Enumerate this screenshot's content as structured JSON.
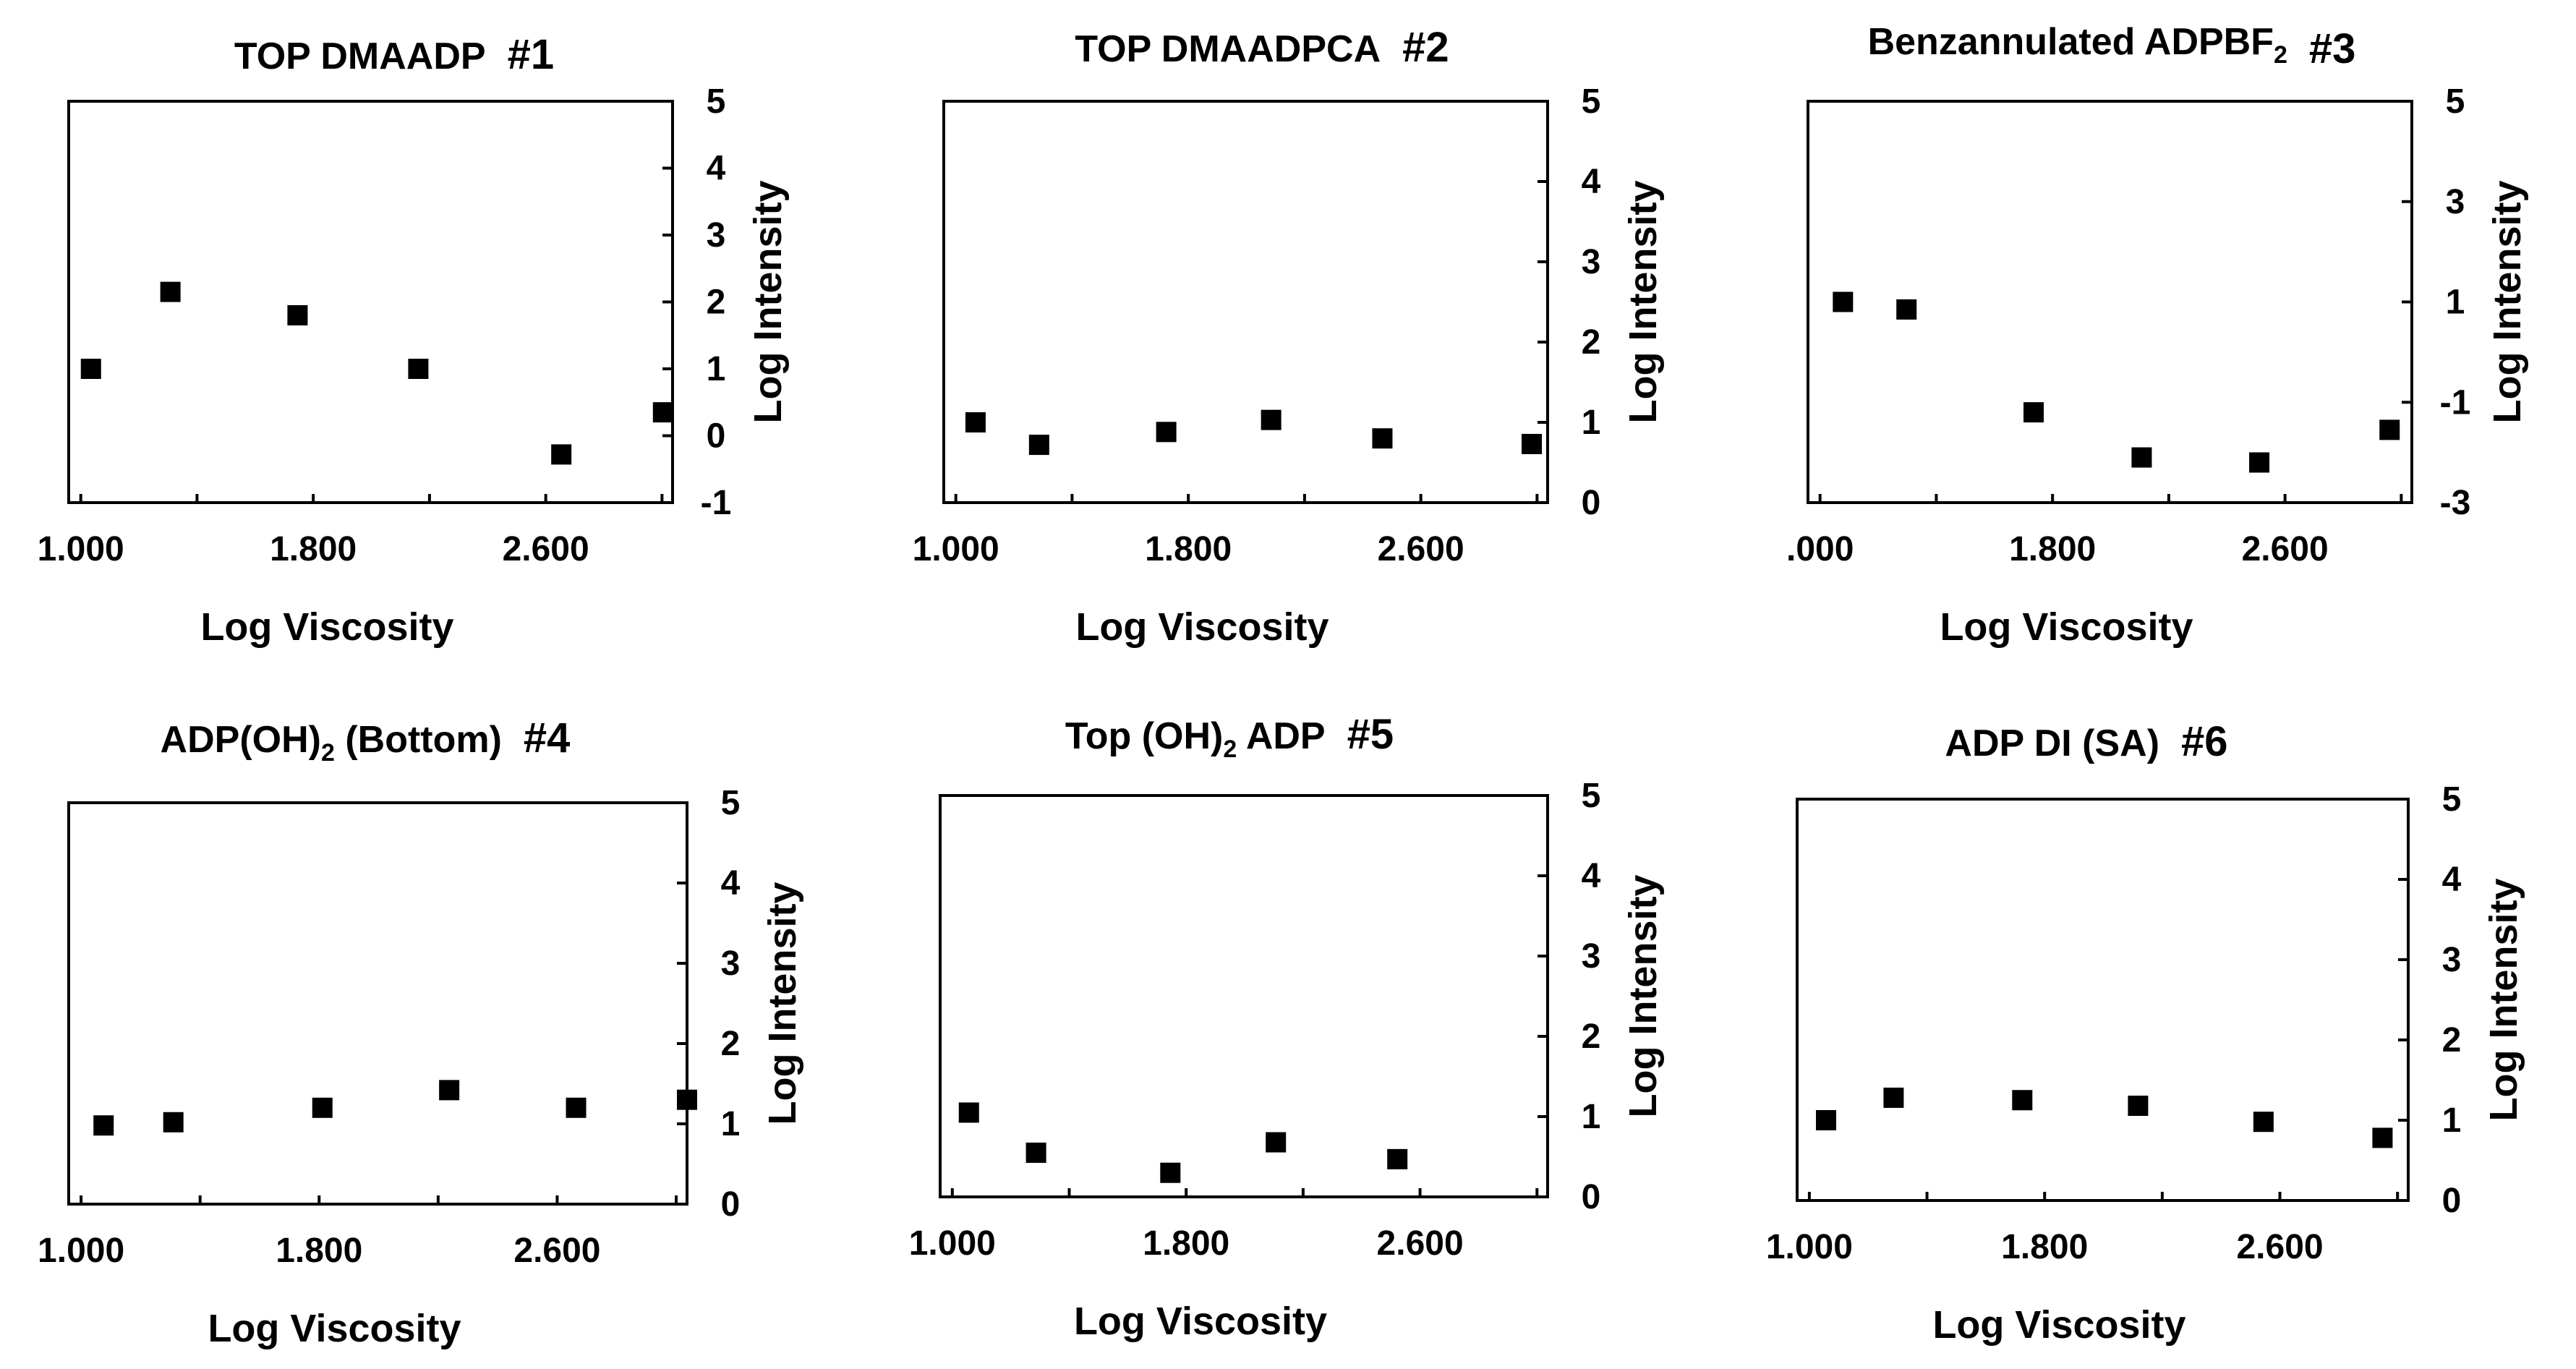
{
  "chart_data": [
    {
      "type": "scatter",
      "title": "TOP DMAADP",
      "title_suffix": "#1",
      "xlabel": "Log Viscosity",
      "ylabel": "Log Intensity",
      "xlim": [
        1.0,
        2.9
      ],
      "ylim": [
        -1,
        5
      ],
      "x_ticks": [
        "1.000",
        "1.800",
        "2.600"
      ],
      "y_ticks": [
        "-1",
        "0",
        "1",
        "2",
        "3",
        "4",
        "5"
      ],
      "series": [
        {
          "x": [
            1.07,
            1.32,
            1.72,
            2.1,
            2.55,
            2.87
          ],
          "y": [
            1.0,
            2.15,
            1.8,
            1.0,
            -0.28,
            0.35
          ]
        }
      ]
    },
    {
      "type": "scatter",
      "title": "TOP DMAADPCA",
      "title_suffix": "#2",
      "xlabel": "Log Viscosity",
      "ylabel": "Log Intensity",
      "xlim": [
        1.0,
        2.9
      ],
      "ylim": [
        0,
        5
      ],
      "x_ticks": [
        "1.000",
        "1.800",
        "2.600"
      ],
      "y_ticks": [
        "0",
        "1",
        "2",
        "3",
        "4",
        "5"
      ],
      "series": [
        {
          "x": [
            1.1,
            1.3,
            1.7,
            2.03,
            2.38,
            2.85
          ],
          "y": [
            1.0,
            0.72,
            0.88,
            1.03,
            0.8,
            0.73
          ]
        }
      ]
    },
    {
      "type": "scatter",
      "title": "Benzannulated ADPBF",
      "title_sub": "2",
      "title_suffix": "#3",
      "xlabel": "Log Viscosity",
      "ylabel": "Log Intensity",
      "xlim": [
        0.95,
        2.85
      ],
      "ylim": [
        -3,
        5
      ],
      "x_ticks": [
        ".000",
        "1.800",
        "2.600"
      ],
      "y_ticks": [
        "-3",
        "-1",
        "1",
        "3",
        "5"
      ],
      "series": [
        {
          "x": [
            1.06,
            1.26,
            1.66,
            2.0,
            2.37,
            2.78
          ],
          "y": [
            1.0,
            0.85,
            -1.2,
            -2.1,
            -2.2,
            -1.55
          ]
        }
      ]
    },
    {
      "type": "scatter",
      "title": "ADP(OH)",
      "title_sub": "2",
      "title_mid": " (Bottom)",
      "title_suffix": "#4",
      "xlabel": "Log Viscosity",
      "ylabel": "Log Intensity",
      "xlim": [
        1.0,
        2.95
      ],
      "ylim": [
        0,
        5
      ],
      "x_ticks": [
        "1.000",
        "1.800",
        "2.600"
      ],
      "y_ticks": [
        "0",
        "1",
        "2",
        "3",
        "4",
        "5"
      ],
      "series": [
        {
          "x": [
            1.11,
            1.33,
            1.8,
            2.2,
            2.6,
            2.95
          ],
          "y": [
            0.98,
            1.02,
            1.2,
            1.42,
            1.2,
            1.3
          ]
        }
      ]
    },
    {
      "type": "scatter",
      "title": "Top (OH)",
      "title_sub": "2",
      "title_mid": " ADP",
      "title_suffix": "#5",
      "xlabel": "Log Viscosity",
      "ylabel": "Log Intensity",
      "xlim": [
        1.0,
        2.9
      ],
      "ylim": [
        0,
        5
      ],
      "x_ticks": [
        "1.000",
        "1.800",
        "2.600"
      ],
      "y_ticks": [
        "0",
        "1",
        "2",
        "3",
        "4",
        "5"
      ],
      "series": [
        {
          "x": [
            1.09,
            1.3,
            1.72,
            2.05,
            2.43
          ],
          "y": [
            1.05,
            0.55,
            0.3,
            0.68,
            0.47
          ]
        }
      ]
    },
    {
      "type": "scatter",
      "title": "ADP DI (SA)",
      "title_suffix": "#6",
      "xlabel": "Log Viscosity",
      "ylabel": "Log Intensity",
      "xlim": [
        1.0,
        2.9
      ],
      "ylim": [
        0,
        5
      ],
      "x_ticks": [
        "1.000",
        "1.800",
        "2.600"
      ],
      "y_ticks": [
        "0",
        "1",
        "2",
        "3",
        "4",
        "5"
      ],
      "series": [
        {
          "x": [
            1.09,
            1.3,
            1.7,
            2.06,
            2.45,
            2.82
          ],
          "y": [
            1.0,
            1.28,
            1.25,
            1.18,
            0.98,
            0.78
          ]
        }
      ]
    }
  ]
}
